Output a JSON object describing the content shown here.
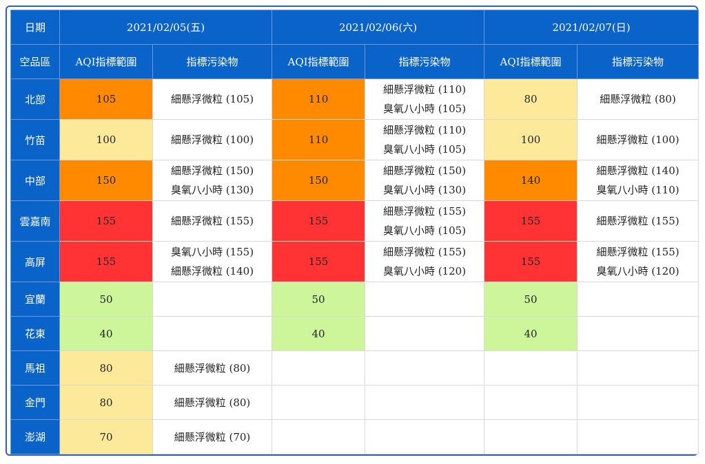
{
  "header": {
    "date_label": "日期",
    "region_label": "空品區",
    "aqi_label": "AQI指標範圍",
    "pollutant_label": "指標污染物",
    "dates": [
      "2021/02/05(五)",
      "2021/02/06(六)",
      "2021/02/07(日)"
    ]
  },
  "colors": {
    "header_bg": "#0a63c8",
    "green": "#cdf59a",
    "yellow": "#fde99a",
    "orange": "#ff8a00",
    "red": "#ff3333"
  },
  "rows": [
    {
      "region": "北部",
      "days": [
        {
          "aqi": "105",
          "color": "#ff8a00",
          "pollutants": [
            "細懸浮微粒 (105)"
          ]
        },
        {
          "aqi": "110",
          "color": "#ff8a00",
          "pollutants": [
            "細懸浮微粒 (110)",
            "臭氧八小時 (105)"
          ]
        },
        {
          "aqi": "80",
          "color": "#fde99a",
          "pollutants": [
            "細懸浮微粒 (80)"
          ]
        }
      ]
    },
    {
      "region": "竹苗",
      "days": [
        {
          "aqi": "100",
          "color": "#fde99a",
          "pollutants": [
            "細懸浮微粒 (100)"
          ]
        },
        {
          "aqi": "110",
          "color": "#ff8a00",
          "pollutants": [
            "細懸浮微粒 (110)",
            "臭氧八小時 (105)"
          ]
        },
        {
          "aqi": "100",
          "color": "#fde99a",
          "pollutants": [
            "細懸浮微粒 (100)"
          ]
        }
      ]
    },
    {
      "region": "中部",
      "days": [
        {
          "aqi": "150",
          "color": "#ff8a00",
          "pollutants": [
            "細懸浮微粒 (150)",
            "臭氧八小時 (130)"
          ]
        },
        {
          "aqi": "150",
          "color": "#ff8a00",
          "pollutants": [
            "細懸浮微粒 (150)",
            "臭氧八小時 (130)"
          ]
        },
        {
          "aqi": "140",
          "color": "#ff8a00",
          "pollutants": [
            "細懸浮微粒 (140)",
            "臭氧八小時 (110)"
          ]
        }
      ]
    },
    {
      "region": "雲嘉南",
      "days": [
        {
          "aqi": "155",
          "color": "#ff3333",
          "pollutants": [
            "細懸浮微粒 (155)"
          ]
        },
        {
          "aqi": "155",
          "color": "#ff3333",
          "pollutants": [
            "細懸浮微粒 (155)",
            "臭氧八小時 (105)"
          ]
        },
        {
          "aqi": "155",
          "color": "#ff3333",
          "pollutants": [
            "細懸浮微粒 (155)"
          ]
        }
      ]
    },
    {
      "region": "高屏",
      "days": [
        {
          "aqi": "155",
          "color": "#ff3333",
          "pollutants": [
            "臭氧八小時 (155)",
            "細懸浮微粒 (140)"
          ]
        },
        {
          "aqi": "155",
          "color": "#ff3333",
          "pollutants": [
            "細懸浮微粒 (155)",
            "臭氧八小時 (120)"
          ]
        },
        {
          "aqi": "155",
          "color": "#ff3333",
          "pollutants": [
            "細懸浮微粒 (155)",
            "臭氧八小時 (120)"
          ]
        }
      ]
    },
    {
      "region": "宜蘭",
      "days": [
        {
          "aqi": "50",
          "color": "#cdf59a",
          "pollutants": []
        },
        {
          "aqi": "50",
          "color": "#cdf59a",
          "pollutants": []
        },
        {
          "aqi": "50",
          "color": "#cdf59a",
          "pollutants": []
        }
      ]
    },
    {
      "region": "花東",
      "days": [
        {
          "aqi": "40",
          "color": "#cdf59a",
          "pollutants": []
        },
        {
          "aqi": "40",
          "color": "#cdf59a",
          "pollutants": []
        },
        {
          "aqi": "40",
          "color": "#cdf59a",
          "pollutants": []
        }
      ]
    },
    {
      "region": "馬祖",
      "days": [
        {
          "aqi": "80",
          "color": "#fde99a",
          "pollutants": [
            "細懸浮微粒 (80)"
          ]
        },
        {
          "aqi": "",
          "color": "#ffffff",
          "pollutants": []
        },
        {
          "aqi": "",
          "color": "#ffffff",
          "pollutants": []
        }
      ]
    },
    {
      "region": "金門",
      "days": [
        {
          "aqi": "80",
          "color": "#fde99a",
          "pollutants": [
            "細懸浮微粒 (80)"
          ]
        },
        {
          "aqi": "",
          "color": "#ffffff",
          "pollutants": []
        },
        {
          "aqi": "",
          "color": "#ffffff",
          "pollutants": []
        }
      ]
    },
    {
      "region": "澎湖",
      "days": [
        {
          "aqi": "70",
          "color": "#fde99a",
          "pollutants": [
            "細懸浮微粒 (70)"
          ]
        },
        {
          "aqi": "",
          "color": "#ffffff",
          "pollutants": []
        },
        {
          "aqi": "",
          "color": "#ffffff",
          "pollutants": []
        }
      ]
    }
  ]
}
